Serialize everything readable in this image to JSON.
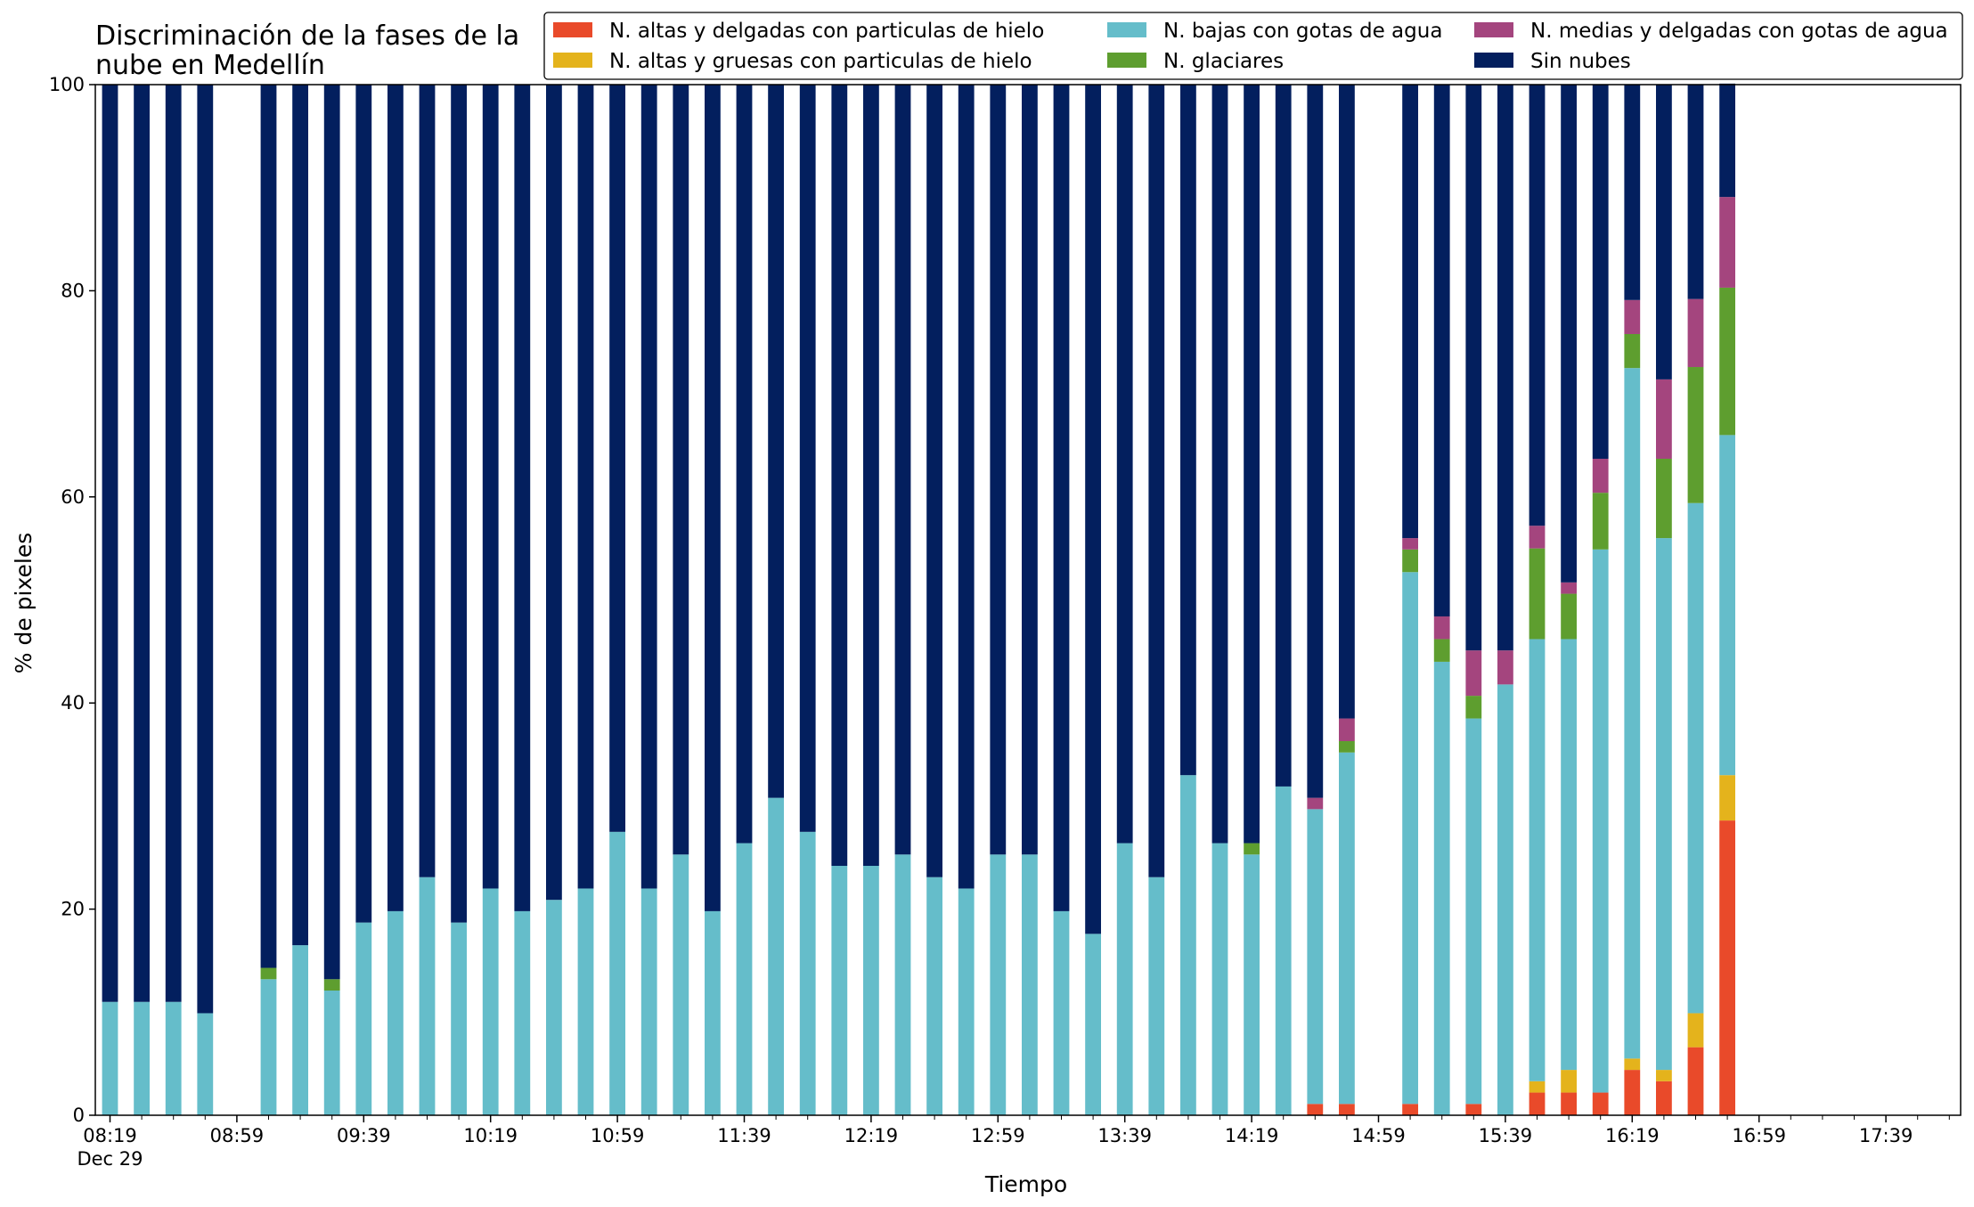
{
  "chart_data": {
    "type": "bar",
    "stacked": true,
    "title_line1": "Discriminación de la fases de la",
    "title_line2": "nube en Medellín",
    "xlabel": "Tiempo",
    "ylabel": "% de pixeles",
    "ylim": [
      0,
      100
    ],
    "yticks": [
      0,
      20,
      40,
      60,
      80,
      100
    ],
    "x_tick_labels": [
      "08:19",
      "08:59",
      "09:39",
      "10:19",
      "10:59",
      "11:39",
      "12:19",
      "12:59",
      "13:39",
      "14:19",
      "14:59",
      "15:39",
      "16:19",
      "16:59",
      "17:39"
    ],
    "x_date_label": "Dec 29",
    "categories": [
      "08:19",
      "08:29",
      "08:39",
      "08:49",
      "08:59",
      "09:09",
      "09:19",
      "09:29",
      "09:39",
      "09:49",
      "09:59",
      "10:09",
      "10:19",
      "10:29",
      "10:39",
      "10:49",
      "10:59",
      "11:09",
      "11:19",
      "11:29",
      "11:39",
      "11:49",
      "11:59",
      "12:09",
      "12:19",
      "12:29",
      "12:39",
      "12:49",
      "12:59",
      "13:09",
      "13:19",
      "13:29",
      "13:39",
      "13:49",
      "13:59",
      "14:09",
      "14:19",
      "14:29",
      "14:39",
      "14:49",
      "14:59",
      "15:09",
      "15:19",
      "15:29",
      "15:39",
      "15:49",
      "15:59",
      "16:09",
      "16:19",
      "16:29",
      "16:39",
      "16:49",
      "16:59",
      "17:09",
      "17:19",
      "17:29",
      "17:39",
      "17:49"
    ],
    "legend_placement": "top-right",
    "series": [
      {
        "name": "N. altas y delgadas con particulas de hielo",
        "color": "#e94a2a",
        "values": [
          0,
          0,
          0,
          0,
          null,
          0,
          0,
          0,
          0,
          0,
          0,
          0,
          0,
          0,
          0,
          0,
          0,
          0,
          0,
          0,
          0,
          0,
          0,
          0,
          0,
          0,
          0,
          0,
          0,
          0,
          0,
          0,
          0,
          0,
          0,
          0,
          0,
          0,
          1.1,
          1.1,
          null,
          1.1,
          0,
          1.1,
          0,
          2.2,
          2.2,
          2.2,
          4.4,
          3.3,
          6.6,
          28.6,
          null,
          null,
          null,
          null,
          null,
          null
        ]
      },
      {
        "name": "N. altas y gruesas con particulas de hielo",
        "color": "#e4b31c",
        "values": [
          0,
          0,
          0,
          0,
          null,
          0,
          0,
          0,
          0,
          0,
          0,
          0,
          0,
          0,
          0,
          0,
          0,
          0,
          0,
          0,
          0,
          0,
          0,
          0,
          0,
          0,
          0,
          0,
          0,
          0,
          0,
          0,
          0,
          0,
          0,
          0,
          0,
          0,
          0,
          0,
          null,
          0,
          0,
          0,
          0,
          1.1,
          2.2,
          0,
          1.1,
          1.1,
          3.3,
          4.4,
          null,
          null,
          null,
          null,
          null,
          null
        ]
      },
      {
        "name": "N. bajas con gotas de agua",
        "color": "#65bdca",
        "values": [
          11,
          11,
          11,
          9.9,
          null,
          13.2,
          16.5,
          12.1,
          18.7,
          19.8,
          23.1,
          18.7,
          22,
          19.8,
          20.9,
          22,
          27.5,
          22,
          25.3,
          19.8,
          26.4,
          30.8,
          27.5,
          24.2,
          24.2,
          25.3,
          23.1,
          22,
          25.3,
          25.3,
          19.8,
          17.6,
          26.4,
          23.1,
          33,
          26.4,
          25.3,
          31.9,
          28.6,
          34.1,
          null,
          51.6,
          44,
          37.4,
          41.8,
          42.9,
          41.8,
          52.7,
          67,
          51.6,
          49.5,
          33,
          null,
          null,
          null,
          null,
          null,
          null
        ]
      },
      {
        "name": "N. glaciares",
        "color": "#5e9e2f",
        "values": [
          0,
          0,
          0,
          0,
          null,
          1.1,
          0,
          1.1,
          0,
          0,
          0,
          0,
          0,
          0,
          0,
          0,
          0,
          0,
          0,
          0,
          0,
          0,
          0,
          0,
          0,
          0,
          0,
          0,
          0,
          0,
          0,
          0,
          0,
          0,
          0,
          0,
          1.1,
          0,
          0,
          1.1,
          null,
          2.2,
          2.2,
          2.2,
          0,
          8.8,
          4.4,
          5.5,
          3.3,
          7.7,
          13.2,
          14.3,
          null,
          null,
          null,
          null,
          null,
          null
        ]
      },
      {
        "name": "N. medias y delgadas con gotas de agua",
        "color": "#a4457e",
        "values": [
          0,
          0,
          0,
          0,
          null,
          0,
          0,
          0,
          0,
          0,
          0,
          0,
          0,
          0,
          0,
          0,
          0,
          0,
          0,
          0,
          0,
          0,
          0,
          0,
          0,
          0,
          0,
          0,
          0,
          0,
          0,
          0,
          0,
          0,
          0,
          0,
          0,
          0,
          1.1,
          2.2,
          null,
          1.1,
          2.2,
          4.4,
          3.3,
          2.2,
          1.1,
          3.3,
          3.3,
          7.7,
          6.6,
          8.8,
          null,
          null,
          null,
          null,
          null,
          null
        ]
      },
      {
        "name": "Sin nubes",
        "color": "#031f5e",
        "values": [
          89,
          89,
          89,
          90.1,
          null,
          85.7,
          83.5,
          86.8,
          81.3,
          80.2,
          76.9,
          81.3,
          78,
          80.2,
          79.1,
          78,
          72.5,
          78,
          74.7,
          80.2,
          73.6,
          69.2,
          72.5,
          75.8,
          75.8,
          74.7,
          76.9,
          78,
          74.7,
          74.7,
          80.2,
          82.4,
          73.6,
          76.9,
          67,
          73.6,
          73.6,
          68.1,
          69.2,
          61.5,
          null,
          44,
          51.6,
          54.9,
          54.9,
          42.8,
          48.3,
          36.3,
          20.9,
          28.6,
          20.8,
          11,
          null,
          null,
          null,
          null,
          null,
          null
        ]
      }
    ]
  }
}
